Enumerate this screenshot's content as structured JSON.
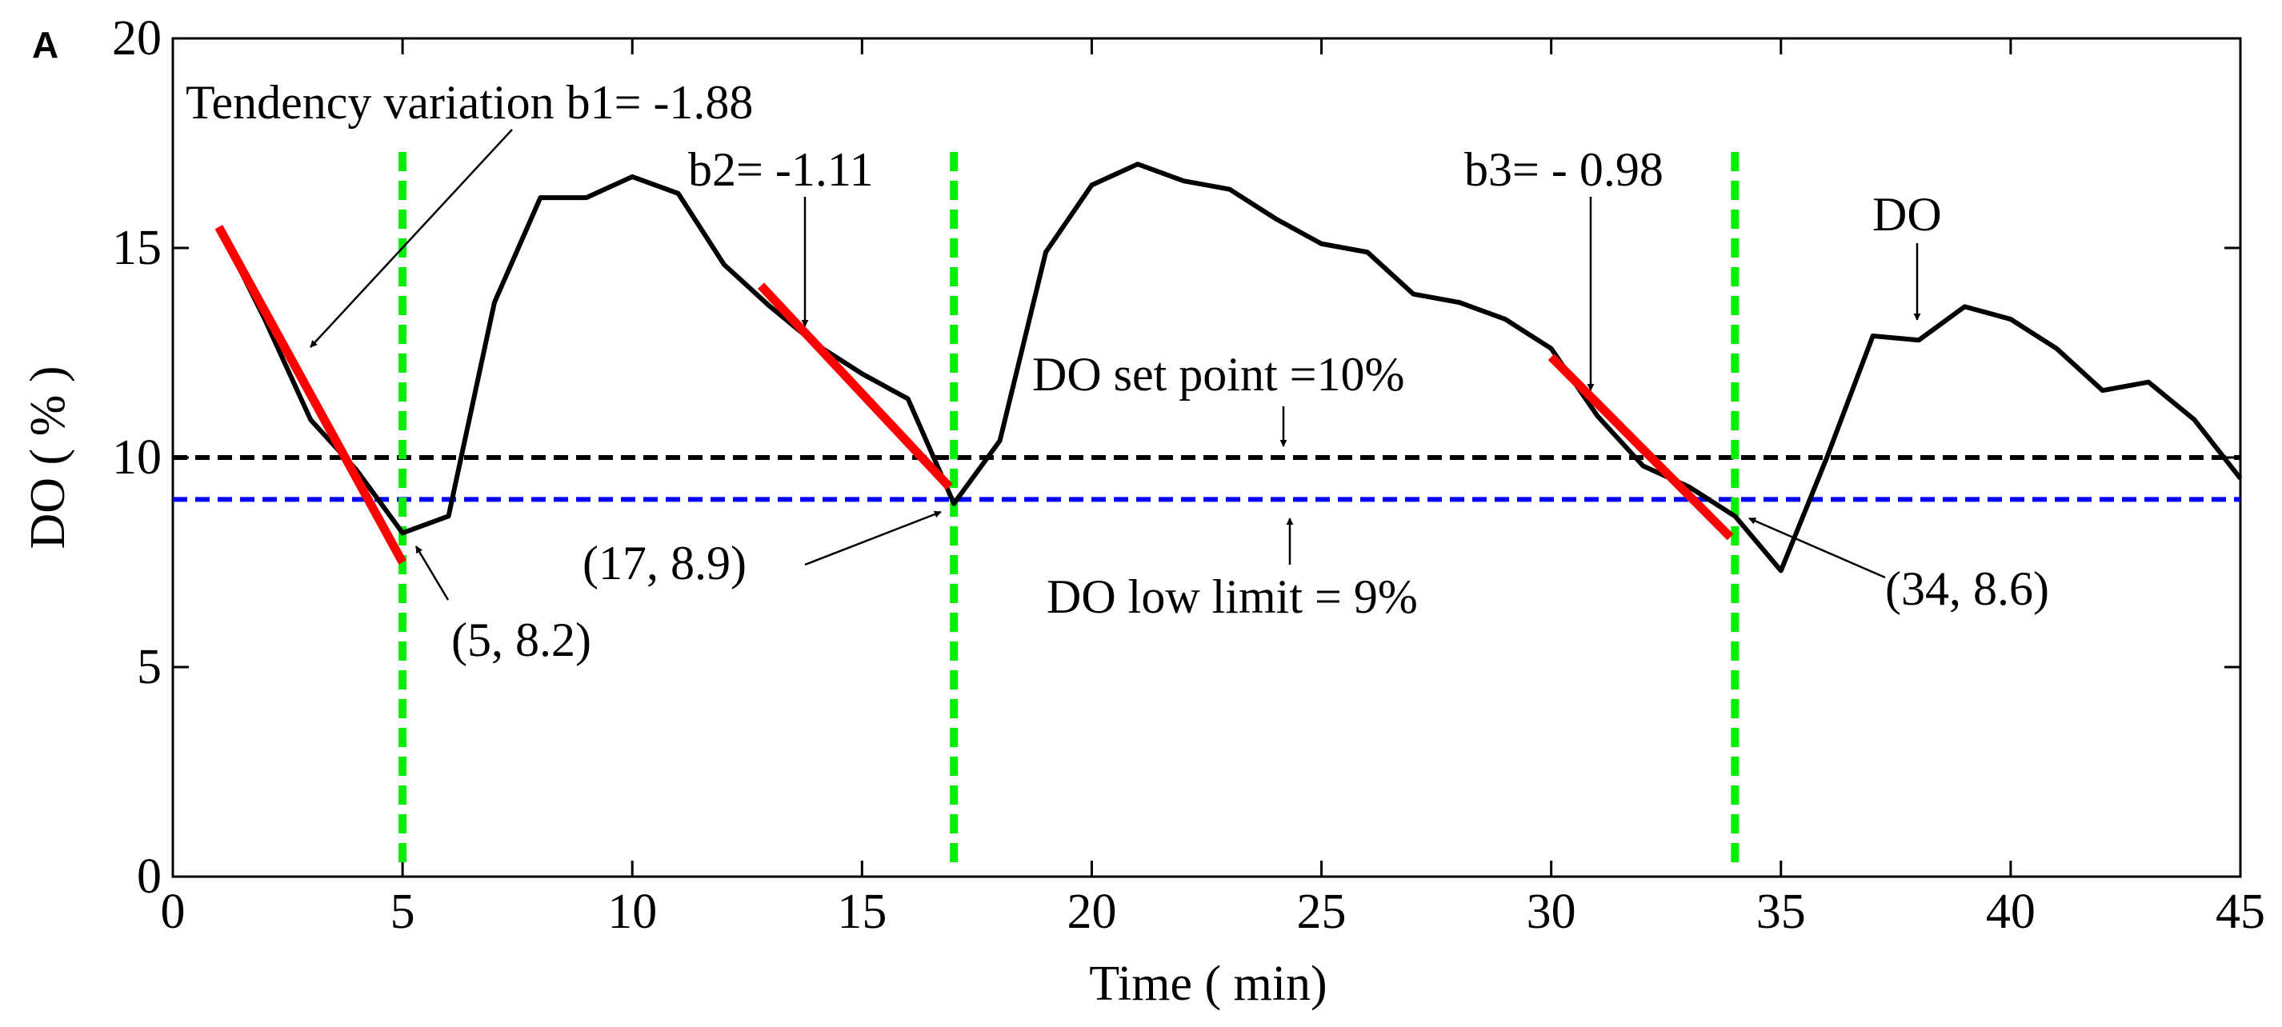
{
  "chart_data": {
    "type": "line",
    "panel_label": "A",
    "xlabel": "Time ( min)",
    "ylabel": "DO ( % )",
    "xlim": [
      0,
      45
    ],
    "ylim": [
      0,
      20
    ],
    "xticks": [
      0,
      5,
      10,
      15,
      20,
      25,
      30,
      35,
      40,
      45
    ],
    "yticks": [
      0,
      5,
      10,
      15,
      20
    ],
    "series": [
      {
        "name": "DO",
        "color": "#000000",
        "points": [
          [
            1,
            15.5
          ],
          [
            2,
            13.3
          ],
          [
            3,
            10.9
          ],
          [
            4,
            9.7
          ],
          [
            5,
            8.2
          ],
          [
            6,
            8.6
          ],
          [
            7,
            13.7
          ],
          [
            8,
            16.2
          ],
          [
            9,
            16.2
          ],
          [
            10,
            16.7
          ],
          [
            11,
            16.3
          ],
          [
            12,
            14.6
          ],
          [
            13,
            13.6
          ],
          [
            14,
            12.7
          ],
          [
            15,
            12.0
          ],
          [
            16,
            11.4
          ],
          [
            17,
            8.9
          ],
          [
            18,
            10.4
          ],
          [
            19,
            14.9
          ],
          [
            20,
            16.5
          ],
          [
            21,
            17.0
          ],
          [
            22,
            16.6
          ],
          [
            23,
            16.4
          ],
          [
            24,
            15.7
          ],
          [
            25,
            15.1
          ],
          [
            26,
            14.9
          ],
          [
            27,
            13.9
          ],
          [
            28,
            13.7
          ],
          [
            29,
            13.3
          ],
          [
            30,
            12.6
          ],
          [
            31,
            11.0
          ],
          [
            32,
            9.8
          ],
          [
            33,
            9.3
          ],
          [
            34,
            8.6
          ],
          [
            35,
            7.3
          ],
          [
            36,
            10.0
          ],
          [
            37,
            12.9
          ],
          [
            38,
            12.8
          ],
          [
            39,
            13.6
          ],
          [
            40,
            13.3
          ],
          [
            41,
            12.6
          ],
          [
            42,
            11.6
          ],
          [
            43,
            11.8
          ],
          [
            44,
            10.9
          ],
          [
            45,
            9.5
          ]
        ]
      }
    ],
    "tendency_lines": [
      {
        "name": "b1",
        "slope": -1.88,
        "color": "#ff0000",
        "points": [
          [
            1,
            15.5
          ],
          [
            5,
            7.5
          ]
        ]
      },
      {
        "name": "b2",
        "slope": -1.11,
        "color": "#ff0000",
        "points": [
          [
            12.8,
            14.1
          ],
          [
            16.9,
            9.3
          ]
        ]
      },
      {
        "name": "b3",
        "slope": -0.98,
        "color": "#ff0000",
        "points": [
          [
            30,
            12.4
          ],
          [
            33.9,
            8.1
          ]
        ]
      }
    ],
    "reference_lines": [
      {
        "name": "DO set point",
        "y": 10,
        "color": "#000000"
      },
      {
        "name": "DO low limit",
        "y": 9,
        "color": "#0000ff"
      }
    ],
    "vertical_markers": [
      {
        "x": 5,
        "color": "#00ee00"
      },
      {
        "x": 17,
        "color": "#00ee00"
      },
      {
        "x": 34,
        "color": "#00ee00"
      }
    ],
    "annotations": {
      "b1_text": "Tendency variation b1= -1.88",
      "b2_text": "b2= -1.11",
      "b3_text": "b3= - 0.98",
      "do_text": "DO",
      "setpoint_text": "DO set point =10%",
      "lowlimit_text": "DO low limit = 9%",
      "p1_text": "(5, 8.2)",
      "p2_text": "(17, 8.9)",
      "p3_text": "(34, 8.6)"
    }
  }
}
